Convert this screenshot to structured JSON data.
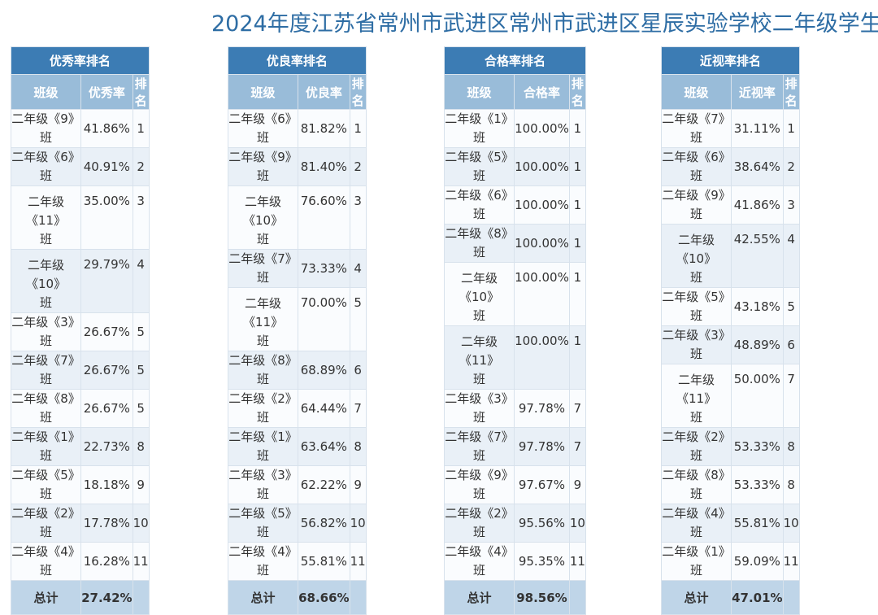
{
  "title": "2024年度江苏省常州市武进区常州市武进区星辰实验学校二年级学生",
  "tables": [
    {
      "heading": "优秀率排名",
      "col_class": "班级",
      "col_rate": "优秀率",
      "col_rank": "排名",
      "rows": [
        {
          "cls": "二年级《9》班",
          "rate": "41.86%",
          "rank": "1"
        },
        {
          "cls": "二年级《6》班",
          "rate": "40.91%",
          "rank": "2"
        },
        {
          "cls": "二年级《11》班",
          "rate": "35.00%",
          "rank": "3"
        },
        {
          "cls": "二年级《10》班",
          "rate": "29.79%",
          "rank": "4"
        },
        {
          "cls": "二年级《3》班",
          "rate": "26.67%",
          "rank": "5"
        },
        {
          "cls": "二年级《7》班",
          "rate": "26.67%",
          "rank": "5"
        },
        {
          "cls": "二年级《8》班",
          "rate": "26.67%",
          "rank": "5"
        },
        {
          "cls": "二年级《1》班",
          "rate": "22.73%",
          "rank": "8"
        },
        {
          "cls": "二年级《5》班",
          "rate": "18.18%",
          "rank": "9"
        },
        {
          "cls": "二年级《2》班",
          "rate": "17.78%",
          "rank": "10"
        },
        {
          "cls": "二年级《4》班",
          "rate": "16.28%",
          "rank": "11"
        }
      ],
      "total_label": "总计",
      "total_value": "27.42%"
    },
    {
      "heading": "优良率排名",
      "col_class": "班级",
      "col_rate": "优良率",
      "col_rank": "排名",
      "rows": [
        {
          "cls": "二年级《6》班",
          "rate": "81.82%",
          "rank": "1"
        },
        {
          "cls": "二年级《9》班",
          "rate": "81.40%",
          "rank": "2"
        },
        {
          "cls": "二年级《10》班",
          "rate": "76.60%",
          "rank": "3"
        },
        {
          "cls": "二年级《7》班",
          "rate": "73.33%",
          "rank": "4"
        },
        {
          "cls": "二年级《11》班",
          "rate": "70.00%",
          "rank": "5"
        },
        {
          "cls": "二年级《8》班",
          "rate": "68.89%",
          "rank": "6"
        },
        {
          "cls": "二年级《2》班",
          "rate": "64.44%",
          "rank": "7"
        },
        {
          "cls": "二年级《1》班",
          "rate": "63.64%",
          "rank": "8"
        },
        {
          "cls": "二年级《3》班",
          "rate": "62.22%",
          "rank": "9"
        },
        {
          "cls": "二年级《5》班",
          "rate": "56.82%",
          "rank": "10"
        },
        {
          "cls": "二年级《4》班",
          "rate": "55.81%",
          "rank": "11"
        }
      ],
      "total_label": "总计",
      "total_value": "68.66%"
    },
    {
      "heading": "合格率排名",
      "col_class": "班级",
      "col_rate": "合格率",
      "col_rank": "排名",
      "rows": [
        {
          "cls": "二年级《1》班",
          "rate": "100.00%",
          "rank": "1"
        },
        {
          "cls": "二年级《5》班",
          "rate": "100.00%",
          "rank": "1"
        },
        {
          "cls": "二年级《6》班",
          "rate": "100.00%",
          "rank": "1"
        },
        {
          "cls": "二年级《8》班",
          "rate": "100.00%",
          "rank": "1"
        },
        {
          "cls": "二年级《10》班",
          "rate": "100.00%",
          "rank": "1"
        },
        {
          "cls": "二年级《11》班",
          "rate": "100.00%",
          "rank": "1"
        },
        {
          "cls": "二年级《3》班",
          "rate": "97.78%",
          "rank": "7"
        },
        {
          "cls": "二年级《7》班",
          "rate": "97.78%",
          "rank": "7"
        },
        {
          "cls": "二年级《9》班",
          "rate": "97.67%",
          "rank": "9"
        },
        {
          "cls": "二年级《2》班",
          "rate": "95.56%",
          "rank": "10"
        },
        {
          "cls": "二年级《4》班",
          "rate": "95.35%",
          "rank": "11"
        }
      ],
      "total_label": "总计",
      "total_value": "98.56%"
    },
    {
      "heading": "近视率排名",
      "col_class": "班级",
      "col_rate": "近视率",
      "col_rank": "排名",
      "rows": [
        {
          "cls": "二年级《7》班",
          "rate": "31.11%",
          "rank": "1"
        },
        {
          "cls": "二年级《6》班",
          "rate": "38.64%",
          "rank": "2"
        },
        {
          "cls": "二年级《9》班",
          "rate": "41.86%",
          "rank": "3"
        },
        {
          "cls": "二年级《10》班",
          "rate": "42.55%",
          "rank": "4"
        },
        {
          "cls": "二年级《5》班",
          "rate": "43.18%",
          "rank": "5"
        },
        {
          "cls": "二年级《3》班",
          "rate": "48.89%",
          "rank": "6"
        },
        {
          "cls": "二年级《11》班",
          "rate": "50.00%",
          "rank": "7"
        },
        {
          "cls": "二年级《2》班",
          "rate": "53.33%",
          "rank": "8"
        },
        {
          "cls": "二年级《8》班",
          "rate": "53.33%",
          "rank": "8"
        },
        {
          "cls": "二年级《4》班",
          "rate": "55.81%",
          "rank": "10"
        },
        {
          "cls": "二年级《1》班",
          "rate": "59.09%",
          "rank": "11"
        }
      ],
      "total_label": "总计",
      "total_value": "47.01%"
    }
  ]
}
